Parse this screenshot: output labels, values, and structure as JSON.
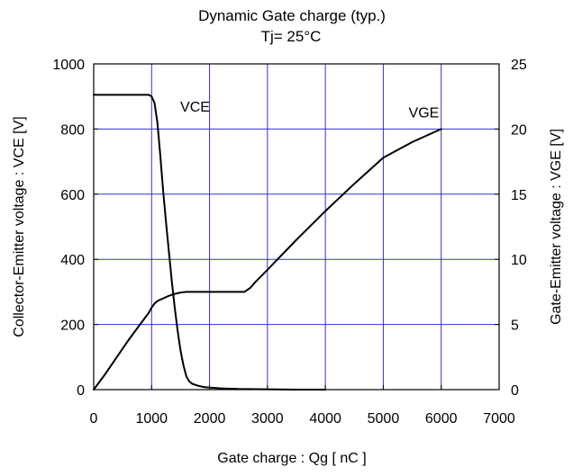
{
  "chart_data": {
    "type": "line",
    "title": "Dynamic Gate charge  (typ.)",
    "subtitle": "Tj= 25°C",
    "xlabel": "Gate charge : Qg [ nC ]",
    "ylabel_left": "Collector-Emitter voltage : VCE [V]",
    "ylabel_right": "Gate-Emitter voltage : VGE [V]",
    "xlim": [
      0,
      7000
    ],
    "ylim_left": [
      0,
      1000
    ],
    "ylim_right": [
      0,
      25
    ],
    "xticks": [
      "0",
      "1000",
      "2000",
      "3000",
      "4000",
      "5000",
      "6000",
      "7000"
    ],
    "yticks_left": [
      "0",
      "200",
      "400",
      "600",
      "800",
      "1000"
    ],
    "yticks_right": [
      "0",
      "5",
      "10",
      "15",
      "20",
      "25"
    ],
    "grid": true,
    "grid_color": "#3333cc",
    "line_color": "#000000",
    "series": [
      {
        "name": "VCE",
        "axis": "left",
        "x": [
          0,
          950,
          1000,
          1050,
          1100,
          1150,
          1200,
          1250,
          1300,
          1350,
          1400,
          1450,
          1500,
          1550,
          1600,
          1650,
          1700,
          1800,
          1900,
          2000,
          2200,
          2500,
          3000,
          3500,
          4000
        ],
        "y": [
          905,
          905,
          900,
          880,
          820,
          720,
          610,
          510,
          420,
          330,
          250,
          180,
          120,
          75,
          40,
          25,
          18,
          12,
          8,
          6,
          4,
          2,
          1,
          0,
          0
        ]
      },
      {
        "name": "VGE",
        "axis": "right",
        "x": [
          0,
          200,
          400,
          600,
          800,
          950,
          1000,
          1050,
          1100,
          1150,
          1200,
          1300,
          1400,
          1500,
          1600,
          1800,
          2000,
          2200,
          2400,
          2600,
          2700,
          2800,
          3000,
          3500,
          4000,
          4500,
          5000,
          5500,
          6000
        ],
        "y": [
          0,
          1.2,
          2.5,
          3.8,
          5.0,
          5.9,
          6.3,
          6.6,
          6.8,
          6.9,
          7.0,
          7.2,
          7.35,
          7.45,
          7.5,
          7.5,
          7.5,
          7.5,
          7.5,
          7.5,
          7.8,
          8.3,
          9.2,
          11.5,
          13.7,
          15.8,
          17.8,
          19.0,
          20.0
        ]
      }
    ],
    "annotations": [
      {
        "text": "VCE",
        "x": 1750,
        "y": 870,
        "axis": "left"
      },
      {
        "text": "VGE",
        "x": 5700,
        "y": 21.3,
        "axis": "right"
      }
    ]
  }
}
